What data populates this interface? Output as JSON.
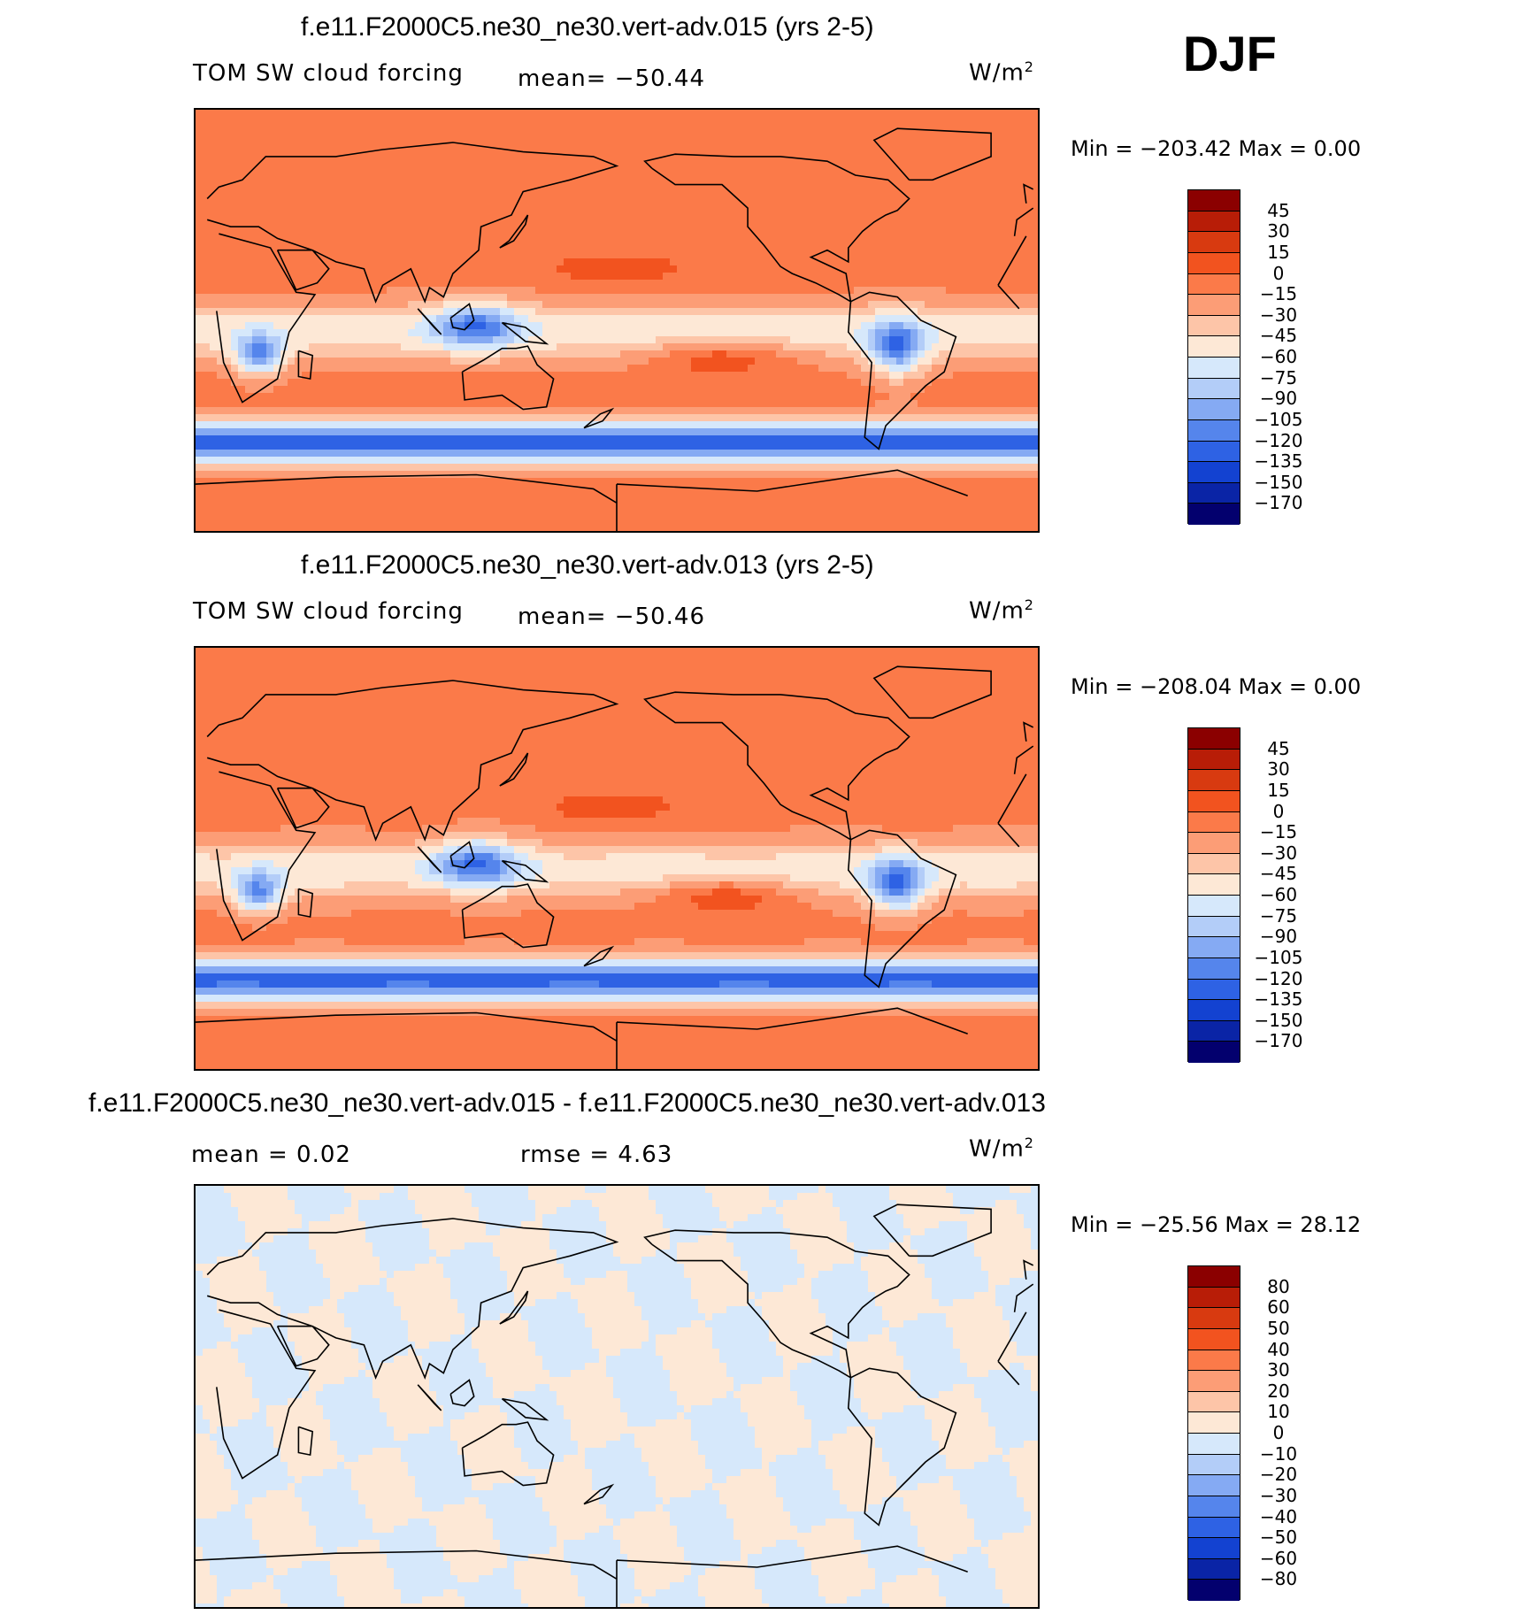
{
  "season": "DJF",
  "units_prefix": "W/m",
  "units_sup": "2",
  "panels": [
    {
      "title": "f.e11.F2000C5.ne30_ne30.vert-adv.015 (yrs 2-5)",
      "left_label": "TOM SW cloud forcing",
      "mid_label": "mean= −50.44",
      "min_max": "Min = −203.42 Max =    0.00",
      "colorbar": {
        "labels": [
          "45",
          "30",
          "15",
          "0",
          "−15",
          "−30",
          "−45",
          "−60",
          "−75",
          "−90",
          "−105",
          "−120",
          "−135",
          "−150",
          "−170"
        ],
        "colors": [
          "#8b0000",
          "#b81d07",
          "#d83a10",
          "#f2531f",
          "#fb7a49",
          "#fc9d76",
          "#fdc5a8",
          "#fde8d6",
          "#d6e8fb",
          "#b3cdf8",
          "#85aaf3",
          "#5585ec",
          "#2e62e4",
          "#1342d1",
          "#0a24a6",
          "#03006e"
        ]
      },
      "field": "model_a"
    },
    {
      "title": "f.e11.F2000C5.ne30_ne30.vert-adv.013 (yrs 2-5)",
      "left_label": "TOM SW cloud forcing",
      "mid_label": "mean= −50.46",
      "min_max": "Min = −208.04 Max =    0.00",
      "colorbar": {
        "labels": [
          "45",
          "30",
          "15",
          "0",
          "−15",
          "−30",
          "−45",
          "−60",
          "−75",
          "−90",
          "−105",
          "−120",
          "−135",
          "−150",
          "−170"
        ],
        "colors": [
          "#8b0000",
          "#b81d07",
          "#d83a10",
          "#f2531f",
          "#fb7a49",
          "#fc9d76",
          "#fdc5a8",
          "#fde8d6",
          "#d6e8fb",
          "#b3cdf8",
          "#85aaf3",
          "#5585ec",
          "#2e62e4",
          "#1342d1",
          "#0a24a6",
          "#03006e"
        ]
      },
      "field": "model_b"
    },
    {
      "title": "f.e11.F2000C5.ne30_ne30.vert-adv.015 - f.e11.F2000C5.ne30_ne30.vert-adv.013",
      "left_label": "mean =    0.02",
      "mid_label": "rmse =    4.63",
      "min_max": "Min = −25.56 Max =  28.12",
      "colorbar": {
        "labels": [
          "80",
          "60",
          "50",
          "40",
          "30",
          "20",
          "10",
          "0",
          "−10",
          "−20",
          "−30",
          "−40",
          "−50",
          "−60",
          "−80"
        ],
        "colors": [
          "#8b0000",
          "#b81d07",
          "#d83a10",
          "#f2531f",
          "#fb7a49",
          "#fc9d76",
          "#fdc5a8",
          "#fde8d6",
          "#d6e8fb",
          "#b3cdf8",
          "#85aaf3",
          "#5585ec",
          "#2e62e4",
          "#1342d1",
          "#0a24a6",
          "#03006e"
        ]
      },
      "field": "difference"
    }
  ]
}
